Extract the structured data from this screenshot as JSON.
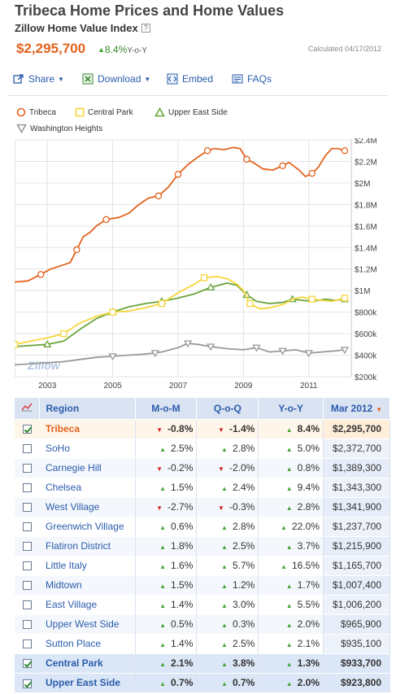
{
  "header": {
    "title": "Tribeca Home Prices and Home Values",
    "subtitle": "Zillow Home Value Index",
    "help": "?",
    "current_value": "$2,295,700",
    "yoy_change": "8.4%",
    "yoy_suffix": "Y-o-Y",
    "calculated": "Calculated 04/17/2012"
  },
  "toolbar": {
    "share_label": "Share",
    "download_label": "Download",
    "embed_label": "Embed",
    "faqs_label": "FAQs"
  },
  "legend": [
    {
      "name": "Tribeca",
      "color": "#e2631e",
      "marker": "circle"
    },
    {
      "name": "Central Park",
      "color": "#f5d63c",
      "marker": "square"
    },
    {
      "name": "Upper East Side",
      "color": "#6aa33a",
      "marker": "triangle-up"
    },
    {
      "name": "Washington Heights",
      "color": "#999999",
      "marker": "triangle-down"
    }
  ],
  "watermark": "Zillow",
  "chart_data": {
    "type": "line",
    "x_ticks": [
      "2003",
      "2005",
      "2007",
      "2009",
      "2011"
    ],
    "y_ticks": [
      "$200k",
      "$400k",
      "$600k",
      "$800k",
      "$1M",
      "$1.2M",
      "$1.4M",
      "$1.6M",
      "$1.8M",
      "$2M",
      "$2.2M",
      "$2.4M"
    ],
    "ylim": [
      200000,
      2400000
    ],
    "xlim": [
      2002.0,
      2012.3
    ],
    "grid": true,
    "series": [
      {
        "name": "Tribeca",
        "color": "#e2631e",
        "marker": "circle",
        "points": [
          [
            2002.0,
            1080000
          ],
          [
            2002.4,
            1090000
          ],
          [
            2002.8,
            1150000
          ],
          [
            2003.1,
            1200000
          ],
          [
            2003.4,
            1230000
          ],
          [
            2003.7,
            1260000
          ],
          [
            2003.9,
            1380000
          ],
          [
            2004.1,
            1500000
          ],
          [
            2004.3,
            1540000
          ],
          [
            2004.5,
            1600000
          ],
          [
            2004.8,
            1660000
          ],
          [
            2005.2,
            1680000
          ],
          [
            2005.5,
            1720000
          ],
          [
            2005.8,
            1800000
          ],
          [
            2006.1,
            1860000
          ],
          [
            2006.4,
            1880000
          ],
          [
            2006.7,
            1960000
          ],
          [
            2007.0,
            2080000
          ],
          [
            2007.3,
            2170000
          ],
          [
            2007.6,
            2240000
          ],
          [
            2007.9,
            2300000
          ],
          [
            2008.1,
            2320000
          ],
          [
            2008.4,
            2310000
          ],
          [
            2008.7,
            2330000
          ],
          [
            2008.9,
            2320000
          ],
          [
            2009.1,
            2220000
          ],
          [
            2009.3,
            2190000
          ],
          [
            2009.6,
            2130000
          ],
          [
            2009.9,
            2120000
          ],
          [
            2010.2,
            2160000
          ],
          [
            2010.4,
            2190000
          ],
          [
            2010.7,
            2120000
          ],
          [
            2010.9,
            2060000
          ],
          [
            2011.1,
            2090000
          ],
          [
            2011.3,
            2150000
          ],
          [
            2011.5,
            2250000
          ],
          [
            2011.7,
            2320000
          ],
          [
            2011.9,
            2320000
          ],
          [
            2012.1,
            2300000
          ]
        ],
        "marker_points": [
          [
            2002.8,
            1150000
          ],
          [
            2003.9,
            1380000
          ],
          [
            2004.8,
            1660000
          ],
          [
            2006.4,
            1880000
          ],
          [
            2007.0,
            2080000
          ],
          [
            2007.9,
            2300000
          ],
          [
            2009.1,
            2220000
          ],
          [
            2010.2,
            2160000
          ],
          [
            2011.1,
            2090000
          ],
          [
            2012.1,
            2300000
          ]
        ]
      },
      {
        "name": "Central Park",
        "color": "#f5d63c",
        "marker": "square",
        "points": [
          [
            2002.0,
            500000
          ],
          [
            2002.5,
            530000
          ],
          [
            2003.0,
            560000
          ],
          [
            2003.5,
            600000
          ],
          [
            2004.0,
            700000
          ],
          [
            2004.5,
            760000
          ],
          [
            2005.0,
            800000
          ],
          [
            2005.5,
            810000
          ],
          [
            2006.0,
            840000
          ],
          [
            2006.5,
            880000
          ],
          [
            2007.0,
            980000
          ],
          [
            2007.5,
            1060000
          ],
          [
            2007.8,
            1120000
          ],
          [
            2008.2,
            1130000
          ],
          [
            2008.5,
            1110000
          ],
          [
            2008.8,
            1060000
          ],
          [
            2009.0,
            1000000
          ],
          [
            2009.2,
            880000
          ],
          [
            2009.5,
            830000
          ],
          [
            2009.8,
            840000
          ],
          [
            2010.2,
            870000
          ],
          [
            2010.5,
            920000
          ],
          [
            2010.8,
            940000
          ],
          [
            2011.1,
            920000
          ],
          [
            2011.4,
            910000
          ],
          [
            2011.7,
            900000
          ],
          [
            2012.1,
            930000
          ]
        ],
        "marker_points": [
          [
            2002.0,
            500000
          ],
          [
            2003.5,
            600000
          ],
          [
            2005.0,
            800000
          ],
          [
            2006.5,
            880000
          ],
          [
            2007.8,
            1120000
          ],
          [
            2009.2,
            880000
          ],
          [
            2011.1,
            920000
          ],
          [
            2012.1,
            930000
          ]
        ]
      },
      {
        "name": "Upper East Side",
        "color": "#6aa33a",
        "marker": "triangle-up",
        "points": [
          [
            2002.0,
            480000
          ],
          [
            2002.5,
            490000
          ],
          [
            2003.0,
            500000
          ],
          [
            2003.5,
            530000
          ],
          [
            2004.0,
            640000
          ],
          [
            2004.5,
            740000
          ],
          [
            2005.0,
            800000
          ],
          [
            2005.5,
            850000
          ],
          [
            2006.0,
            880000
          ],
          [
            2006.5,
            900000
          ],
          [
            2007.0,
            930000
          ],
          [
            2007.5,
            970000
          ],
          [
            2008.0,
            1030000
          ],
          [
            2008.5,
            1070000
          ],
          [
            2008.8,
            1050000
          ],
          [
            2009.1,
            960000
          ],
          [
            2009.4,
            900000
          ],
          [
            2009.8,
            880000
          ],
          [
            2010.2,
            890000
          ],
          [
            2010.5,
            920000
          ],
          [
            2010.8,
            910000
          ],
          [
            2011.1,
            900000
          ],
          [
            2011.5,
            920000
          ],
          [
            2011.8,
            910000
          ],
          [
            2012.1,
            920000
          ]
        ],
        "marker_points": [
          [
            2003.0,
            500000
          ],
          [
            2005.0,
            800000
          ],
          [
            2006.5,
            900000
          ],
          [
            2008.0,
            1030000
          ],
          [
            2009.1,
            960000
          ],
          [
            2010.5,
            920000
          ],
          [
            2012.1,
            920000
          ]
        ]
      },
      {
        "name": "Washington Heights",
        "color": "#999999",
        "marker": "triangle-down",
        "points": [
          [
            2002.0,
            310000
          ],
          [
            2002.5,
            320000
          ],
          [
            2003.0,
            330000
          ],
          [
            2003.5,
            340000
          ],
          [
            2004.0,
            360000
          ],
          [
            2004.5,
            380000
          ],
          [
            2005.0,
            390000
          ],
          [
            2005.5,
            400000
          ],
          [
            2006.0,
            410000
          ],
          [
            2006.5,
            430000
          ],
          [
            2007.0,
            470000
          ],
          [
            2007.3,
            510000
          ],
          [
            2007.6,
            500000
          ],
          [
            2008.0,
            480000
          ],
          [
            2008.5,
            460000
          ],
          [
            2009.0,
            450000
          ],
          [
            2009.4,
            470000
          ],
          [
            2009.8,
            430000
          ],
          [
            2010.2,
            440000
          ],
          [
            2010.6,
            450000
          ],
          [
            2011.0,
            420000
          ],
          [
            2011.4,
            430000
          ],
          [
            2011.8,
            440000
          ],
          [
            2012.1,
            450000
          ]
        ],
        "marker_points": [
          [
            2005.0,
            390000
          ],
          [
            2006.3,
            420000
          ],
          [
            2007.3,
            510000
          ],
          [
            2008.0,
            480000
          ],
          [
            2009.4,
            470000
          ],
          [
            2010.2,
            440000
          ],
          [
            2011.0,
            420000
          ],
          [
            2012.1,
            450000
          ]
        ]
      }
    ]
  },
  "table": {
    "headers": {
      "region": "Region",
      "mom": "M-o-M",
      "qoq": "Q-o-Q",
      "yoy": "Y-o-Y",
      "mar": "Mar 2012"
    },
    "rows": [
      {
        "name": "Tribeca",
        "checked": true,
        "style": "sel",
        "mom": "-0.8%",
        "mom_dir": "down",
        "qoq": "-1.4%",
        "qoq_dir": "down",
        "yoy": "8.4%",
        "yoy_dir": "up",
        "mar": "$2,295,700"
      },
      {
        "name": "SoHo",
        "checked": false,
        "style": "",
        "mom": "2.5%",
        "mom_dir": "up",
        "qoq": "2.8%",
        "qoq_dir": "up",
        "yoy": "5.0%",
        "yoy_dir": "up",
        "mar": "$2,372,700"
      },
      {
        "name": "Carnegie Hill",
        "checked": false,
        "style": "odd",
        "mom": "-0.2%",
        "mom_dir": "down",
        "qoq": "-2.0%",
        "qoq_dir": "down",
        "yoy": "0.8%",
        "yoy_dir": "up",
        "mar": "$1,389,300"
      },
      {
        "name": "Chelsea",
        "checked": false,
        "style": "",
        "mom": "1.5%",
        "mom_dir": "up",
        "qoq": "2.4%",
        "qoq_dir": "up",
        "yoy": "9.4%",
        "yoy_dir": "up",
        "mar": "$1,343,300"
      },
      {
        "name": "West Village",
        "checked": false,
        "style": "odd",
        "mom": "-2.7%",
        "mom_dir": "down",
        "qoq": "-0.3%",
        "qoq_dir": "down",
        "yoy": "2.8%",
        "yoy_dir": "up",
        "mar": "$1,341,900"
      },
      {
        "name": "Greenwich Village",
        "checked": false,
        "style": "",
        "mom": "0.6%",
        "mom_dir": "up",
        "qoq": "2.8%",
        "qoq_dir": "up",
        "yoy": "22.0%",
        "yoy_dir": "up",
        "mar": "$1,237,700"
      },
      {
        "name": "Flatiron District",
        "checked": false,
        "style": "odd",
        "mom": "1.8%",
        "mom_dir": "up",
        "qoq": "2.5%",
        "qoq_dir": "up",
        "yoy": "3.7%",
        "yoy_dir": "up",
        "mar": "$1,215,900"
      },
      {
        "name": "Little Italy",
        "checked": false,
        "style": "",
        "mom": "1.6%",
        "mom_dir": "up",
        "qoq": "5.7%",
        "qoq_dir": "up",
        "yoy": "16.5%",
        "yoy_dir": "up",
        "mar": "$1,165,700"
      },
      {
        "name": "Midtown",
        "checked": false,
        "style": "odd",
        "mom": "1.5%",
        "mom_dir": "up",
        "qoq": "1.2%",
        "qoq_dir": "up",
        "yoy": "1.7%",
        "yoy_dir": "up",
        "mar": "$1,007,400"
      },
      {
        "name": "East Village",
        "checked": false,
        "style": "",
        "mom": "1.4%",
        "mom_dir": "up",
        "qoq": "3.0%",
        "qoq_dir": "up",
        "yoy": "5.5%",
        "yoy_dir": "up",
        "mar": "$1,006,200"
      },
      {
        "name": "Upper West Side",
        "checked": false,
        "style": "odd",
        "mom": "0.5%",
        "mom_dir": "up",
        "qoq": "0.3%",
        "qoq_dir": "up",
        "yoy": "2.0%",
        "yoy_dir": "up",
        "mar": "$965,900"
      },
      {
        "name": "Sutton Place",
        "checked": false,
        "style": "",
        "mom": "1.4%",
        "mom_dir": "up",
        "qoq": "2.5%",
        "qoq_dir": "up",
        "yoy": "2.1%",
        "yoy_dir": "up",
        "mar": "$935,100"
      },
      {
        "name": "Central Park",
        "checked": true,
        "style": "hl",
        "mom": "2.1%",
        "mom_dir": "up",
        "qoq": "3.8%",
        "qoq_dir": "up",
        "yoy": "1.3%",
        "yoy_dir": "up",
        "mar": "$933,700"
      },
      {
        "name": "Upper East Side",
        "checked": true,
        "style": "hl",
        "mom": "0.7%",
        "mom_dir": "up",
        "qoq": "0.7%",
        "qoq_dir": "up",
        "yoy": "2.0%",
        "yoy_dir": "up",
        "mar": "$923,800"
      }
    ]
  }
}
